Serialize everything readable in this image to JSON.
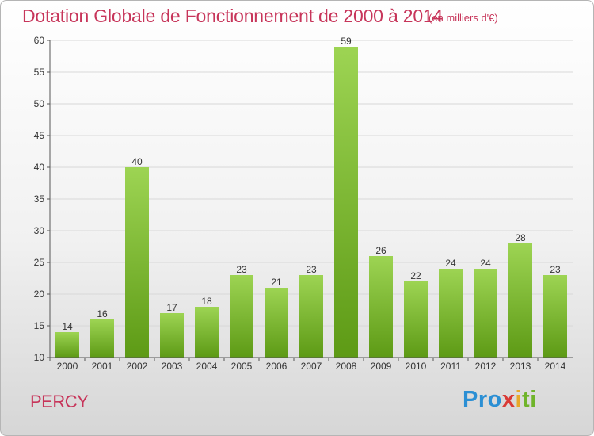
{
  "header": {
    "title": "Dotation Globale de Fonctionnement de 2000 à 2014",
    "unit": "(en milliers d'€)"
  },
  "footer": {
    "commune": "PERCY",
    "logo_parts": [
      "Pro",
      "x",
      "i",
      "ti"
    ]
  },
  "colors": {
    "title": "#c7355a",
    "bar_top": "#9dd453",
    "bar_bottom": "#5d9a15",
    "grid": "#d8d8d8"
  },
  "chart_data": {
    "type": "bar",
    "title": "Dotation Globale de Fonctionnement de 2000 à 2014",
    "xlabel": "",
    "ylabel": "(en milliers d'€)",
    "categories": [
      "2000",
      "2001",
      "2002",
      "2003",
      "2004",
      "2005",
      "2006",
      "2007",
      "2008",
      "2009",
      "2010",
      "2011",
      "2012",
      "2013",
      "2014"
    ],
    "values": [
      14,
      16,
      40,
      17,
      18,
      23,
      21,
      23,
      59,
      26,
      22,
      24,
      24,
      28,
      23
    ],
    "ylim": [
      10,
      60
    ],
    "yticks": [
      10,
      15,
      20,
      25,
      30,
      35,
      40,
      45,
      50,
      55,
      60
    ],
    "grid": true,
    "data_labels": true
  }
}
